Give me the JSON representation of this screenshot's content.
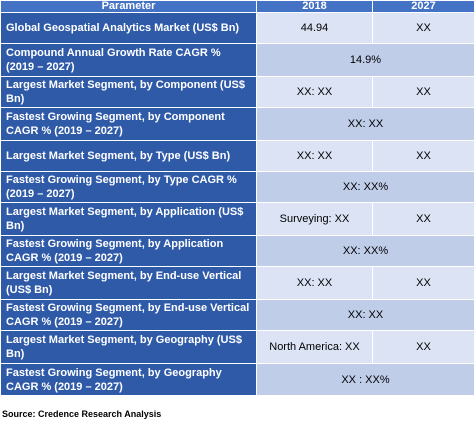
{
  "header": {
    "parameter": "Parameter",
    "year1": "2018",
    "year2": "2027"
  },
  "rows": [
    {
      "label": "Global Geospatial Analytics Market (US$ Bn)",
      "v2018": "44.94",
      "v2027": "XX"
    },
    {
      "label": "Compound Annual Growth Rate CAGR % (2019 – 2027)",
      "combined": "14.9%"
    },
    {
      "label": "Largest Market Segment, by Component (US$ Bn)",
      "v2018": "XX: XX",
      "v2027": "XX"
    },
    {
      "label": "Fastest Growing Segment, by Component CAGR % (2019 – 2027)",
      "combined": "XX: XX"
    },
    {
      "label": "Largest Market Segment, by Type (US$ Bn)",
      "v2018": "XX: XX",
      "v2027": "XX"
    },
    {
      "label": "Fastest Growing Segment, by Type CAGR % (2019 – 2027)",
      "combined": "XX: XX%"
    },
    {
      "label": "Largest Market Segment, by Application (US$ Bn)",
      "v2018": "Surveying: XX",
      "v2027": "XX"
    },
    {
      "label": "Fastest Growing Segment, by Application CAGR % (2019 – 2027)",
      "combined": "XX: XX%"
    },
    {
      "label": "Largest Market Segment, by End-use Vertical (US$ Bn)",
      "v2018": "XX: XX",
      "v2027": "XX"
    },
    {
      "label": "Fastest Growing Segment, by End-use Vertical CAGR % (2019 – 2027)",
      "combined": "XX: XX"
    },
    {
      "label": "Largest Market Segment, by Geography (US$ Bn)",
      "v2018": "North America: XX",
      "v2027": "XX"
    },
    {
      "label": "Fastest Growing Segment, by Geography CAGR % (2019 – 2027)",
      "combined": "XX : XX%"
    }
  ],
  "source": "Source: Credence Research Analysis"
}
